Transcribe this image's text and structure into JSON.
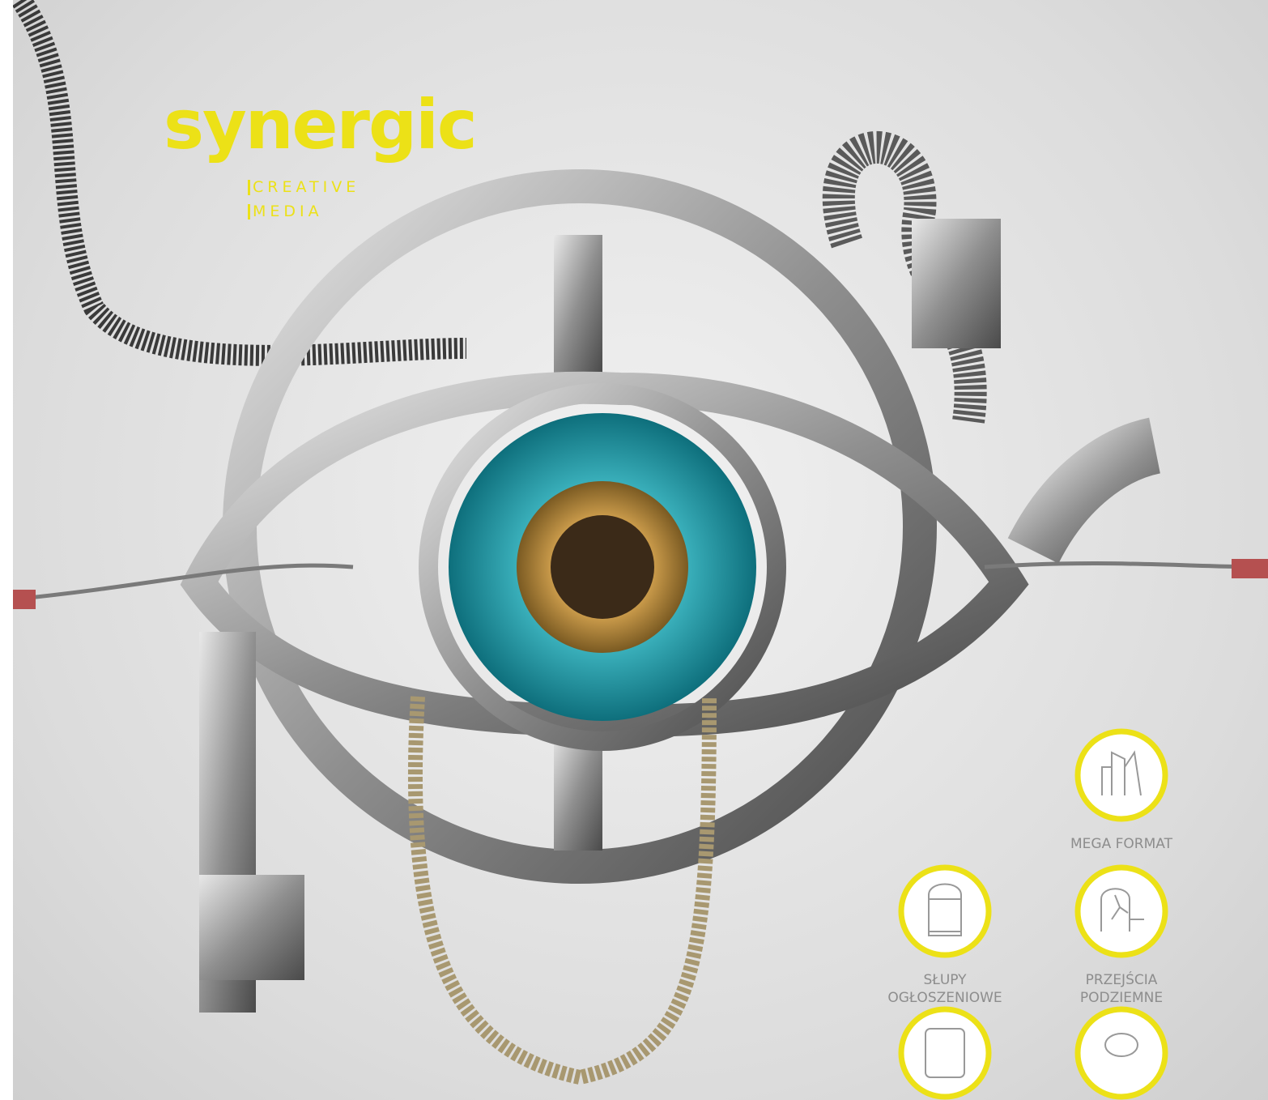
{
  "logo": {
    "name": "synergic",
    "tagline": [
      "CREATIVE",
      "MEDIA"
    ]
  },
  "menu": [
    {
      "label": [
        "MEGA FORMAT"
      ]
    },
    {
      "label": [
        "SŁUPY",
        "OGŁOSZENIOWE"
      ]
    },
    {
      "label": [
        "PRZEJŚCIA",
        "PODZIEMNE"
      ]
    }
  ]
}
